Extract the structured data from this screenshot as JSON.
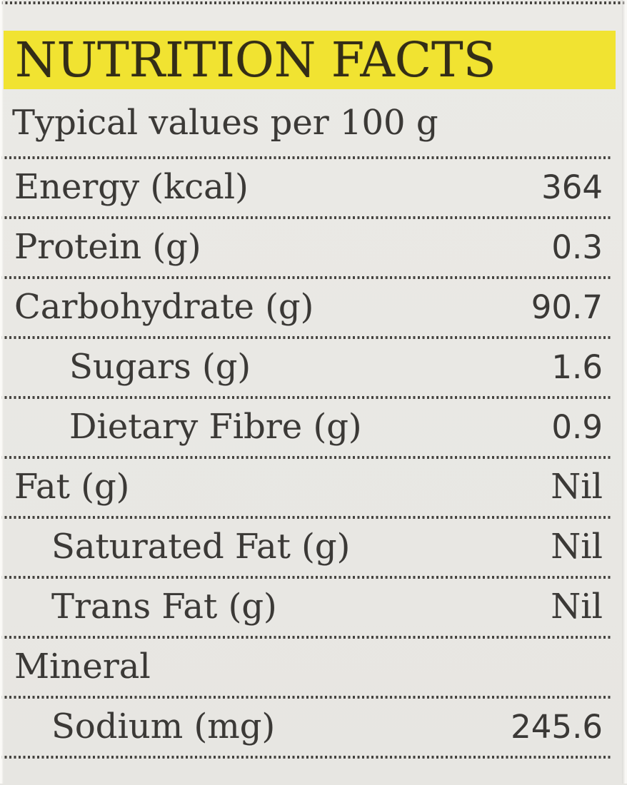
{
  "nutrition_label": {
    "title": "NUTRITION FACTS",
    "subtitle": "Typical values per 100 g",
    "rows": [
      {
        "name": "Energy (kcal)",
        "value": "364",
        "level": 0
      },
      {
        "name": "Protein (g)",
        "value": "0.3",
        "level": 0
      },
      {
        "name": "Carbohydrate (g)",
        "value": "90.7",
        "level": 0
      },
      {
        "name": "Sugars (g)",
        "value": "1.6",
        "level": 1
      },
      {
        "name": "Dietary Fibre (g)",
        "value": "0.9",
        "level": 1
      },
      {
        "name": "Fat (g)",
        "value": "Nil",
        "level": 0
      },
      {
        "name": "Saturated Fat (g)",
        "value": "Nil",
        "level": 1
      },
      {
        "name": "Trans Fat (g)",
        "value": "Nil",
        "level": 1
      },
      {
        "name": "Mineral",
        "value": "",
        "level": 0
      },
      {
        "name": "Sodium (mg)",
        "value": "245.6",
        "level": 1
      }
    ],
    "colors": {
      "highlight": "#f1e331",
      "background": "#e9e8e4",
      "text": "#3b3936",
      "title_text": "#332d17",
      "dots": "#45433f"
    }
  }
}
